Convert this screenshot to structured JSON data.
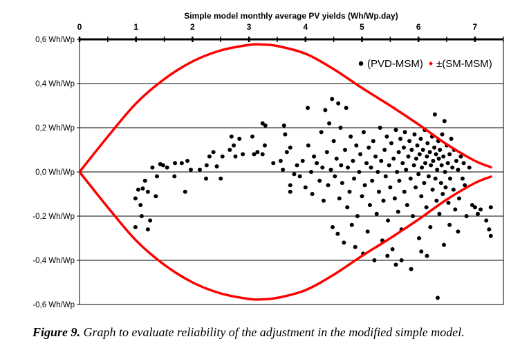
{
  "chart_data": {
    "type": "scatter",
    "title": "Simple model monthly average PV yields (Wh/Wp.day)",
    "xlabel": "Simple model monthly average PV yields (Wh/Wp.day)",
    "ylabel": "",
    "xlim": [
      0,
      7.5
    ],
    "ylim": [
      -0.6,
      0.6
    ],
    "x_ticks": [
      "0",
      "1",
      "2",
      "3",
      "4",
      "5",
      "6",
      "7"
    ],
    "x_tick_values": [
      0,
      1,
      2,
      3,
      4,
      5,
      6,
      7
    ],
    "y_ticks": [
      "0,6 Wh/Wp",
      "0,4 Wh/Wp",
      "0,2 Wh/Wp",
      "0,0 Wh/Wp",
      "-0,2 Wh/Wp",
      "-0,4 Wh/Wp",
      "-0,6 Wh/Wp"
    ],
    "y_tick_values": [
      0.6,
      0.4,
      0.2,
      0,
      -0.2,
      -0.4,
      -0.6
    ],
    "grid": "horizontal",
    "legend_position": "top-right",
    "legend": [
      "(PVD-MSM)",
      "±(SM-MSM)"
    ],
    "colors": {
      "points": "#000000",
      "envelope": "#ff0000"
    },
    "series": [
      {
        "name": "(PVD-MSM)",
        "kind": "points",
        "points": [
          [
            0.99,
            -0.12
          ],
          [
            0.99,
            -0.25
          ],
          [
            1.04,
            -0.08
          ],
          [
            1.08,
            -0.15
          ],
          [
            1.1,
            -0.2
          ],
          [
            1.12,
            -0.075
          ],
          [
            1.16,
            -0.04
          ],
          [
            1.21,
            -0.09
          ],
          [
            1.21,
            -0.26
          ],
          [
            1.25,
            -0.22
          ],
          [
            1.29,
            0.02
          ],
          [
            1.35,
            -0.11
          ],
          [
            1.37,
            -0.02
          ],
          [
            1.43,
            0.035
          ],
          [
            1.48,
            0.03
          ],
          [
            1.55,
            0.02
          ],
          [
            1.69,
            0.04
          ],
          [
            1.68,
            -0.02
          ],
          [
            1.81,
            0.04
          ],
          [
            1.87,
            -0.09
          ],
          [
            1.91,
            0.05
          ],
          [
            1.97,
            0.01
          ],
          [
            2.13,
            0.01
          ],
          [
            2.24,
            -0.03
          ],
          [
            2.25,
            0.03
          ],
          [
            2.3,
            0.07
          ],
          [
            2.37,
            0.09
          ],
          [
            2.43,
            0.025
          ],
          [
            2.5,
            -0.03
          ],
          [
            2.53,
            0.07
          ],
          [
            2.66,
            0.1
          ],
          [
            2.69,
            0.16
          ],
          [
            2.73,
            0.12
          ],
          [
            2.76,
            0.07
          ],
          [
            2.83,
            0.15
          ],
          [
            2.89,
            0.08
          ],
          [
            3.06,
            0.16
          ],
          [
            3.09,
            0.08
          ],
          [
            3.15,
            0.09
          ],
          [
            3.24,
            0.22
          ],
          [
            3.29,
            0.21
          ],
          [
            3.28,
            0.12
          ],
          [
            3.24,
            0.08
          ],
          [
            3.43,
            0.04
          ],
          [
            3.56,
            0.05
          ],
          [
            3.62,
            0.21
          ],
          [
            3.64,
            0.17
          ],
          [
            3.73,
            0.11
          ],
          [
            3.73,
            -0.06
          ],
          [
            3.73,
            -0.09
          ],
          [
            3.67,
            0.09
          ],
          [
            3.6,
            0.01
          ],
          [
            3.8,
            -0.01
          ],
          [
            3.85,
            0.03
          ],
          [
            3.9,
            -0.02
          ],
          [
            3.95,
            0.05
          ],
          [
            4.0,
            -0.07
          ],
          [
            4.04,
            0.29
          ],
          [
            4.05,
            0.12
          ],
          [
            4.1,
            0.0
          ],
          [
            4.12,
            -0.1
          ],
          [
            4.15,
            0.07
          ],
          [
            4.2,
            0.04
          ],
          [
            4.25,
            -0.04
          ],
          [
            4.28,
            0.18
          ],
          [
            4.3,
            0.02
          ],
          [
            4.32,
            -0.13
          ],
          [
            4.35,
            0.28
          ],
          [
            4.38,
            0.09
          ],
          [
            4.4,
            -0.06
          ],
          [
            4.42,
            0.22
          ],
          [
            4.45,
            0.01
          ],
          [
            4.47,
            0.33
          ],
          [
            4.48,
            -0.25
          ],
          [
            4.5,
            0.14
          ],
          [
            4.52,
            -0.02
          ],
          [
            4.55,
            0.06
          ],
          [
            4.57,
            -0.28
          ],
          [
            4.58,
            0.31
          ],
          [
            4.6,
            -0.12
          ],
          [
            4.62,
            0.2
          ],
          [
            4.63,
            0.03
          ],
          [
            4.65,
            -0.05
          ],
          [
            4.68,
            -0.32
          ],
          [
            4.7,
            0.1
          ],
          [
            4.72,
            0.29
          ],
          [
            4.74,
            -0.16
          ],
          [
            4.75,
            0.02
          ],
          [
            4.78,
            -0.09
          ],
          [
            4.8,
            0.16
          ],
          [
            4.82,
            -0.24
          ],
          [
            4.84,
            0.05
          ],
          [
            4.86,
            -0.03
          ],
          [
            4.88,
            -0.34
          ],
          [
            4.9,
            0.12
          ],
          [
            4.92,
            -0.2
          ],
          [
            4.95,
            0.0
          ],
          [
            4.97,
            0.08
          ],
          [
            5.0,
            -0.11
          ],
          [
            5.02,
            -0.37
          ],
          [
            5.03,
            0.18
          ],
          [
            5.05,
            -0.06
          ],
          [
            5.08,
            0.04
          ],
          [
            5.1,
            -0.27
          ],
          [
            5.12,
            0.11
          ],
          [
            5.14,
            -0.15
          ],
          [
            5.16,
            0.02
          ],
          [
            5.18,
            -0.04
          ],
          [
            5.2,
            0.14
          ],
          [
            5.22,
            -0.4
          ],
          [
            5.24,
            0.07
          ],
          [
            5.26,
            -0.19
          ],
          [
            5.28,
            0.0
          ],
          [
            5.3,
            -0.09
          ],
          [
            5.32,
            0.2
          ],
          [
            5.34,
            0.05
          ],
          [
            5.36,
            -0.31
          ],
          [
            5.38,
            -0.13
          ],
          [
            5.4,
            0.1
          ],
          [
            5.42,
            -0.02
          ],
          [
            5.44,
            0.16
          ],
          [
            5.46,
            -0.22
          ],
          [
            5.48,
            0.03
          ],
          [
            5.5,
            -0.07
          ],
          [
            5.52,
            0.13
          ],
          [
            5.54,
            -0.35
          ],
          [
            5.56,
            0.06
          ],
          [
            5.58,
            -0.12
          ],
          [
            5.6,
            0.19
          ],
          [
            5.62,
            0.0
          ],
          [
            5.64,
            -0.18
          ],
          [
            5.65,
            0.09
          ],
          [
            5.66,
            -0.04
          ],
          [
            5.68,
            0.15
          ],
          [
            5.7,
            -0.26
          ],
          [
            5.72,
            0.04
          ],
          [
            5.74,
            0.11
          ],
          [
            5.75,
            -0.09
          ],
          [
            5.76,
            0.18
          ],
          [
            5.78,
            0.01
          ],
          [
            5.8,
            -0.15
          ],
          [
            5.82,
            0.07
          ],
          [
            5.84,
            0.14
          ],
          [
            5.86,
            -0.03
          ],
          [
            5.87,
            -0.44
          ],
          [
            5.88,
            0.1
          ],
          [
            5.9,
            -0.2
          ],
          [
            5.92,
            0.03
          ],
          [
            5.93,
            0.17
          ],
          [
            5.95,
            -0.07
          ],
          [
            5.96,
            0.06
          ],
          [
            5.98,
            0.12
          ],
          [
            6.0,
            -0.01
          ],
          [
            6.01,
            -0.3
          ],
          [
            6.02,
            0.08
          ],
          [
            6.04,
            0.15
          ],
          [
            6.05,
            -0.11
          ],
          [
            6.06,
            0.02
          ],
          [
            6.08,
            0.1
          ],
          [
            6.1,
            -0.05
          ],
          [
            6.11,
            0.19
          ],
          [
            6.12,
            0.04
          ],
          [
            6.14,
            -0.16
          ],
          [
            6.15,
            0.07
          ],
          [
            6.16,
            0.13
          ],
          [
            6.18,
            -0.02
          ],
          [
            6.2,
            0.09
          ],
          [
            6.21,
            -0.25
          ],
          [
            6.22,
            0.03
          ],
          [
            6.24,
            0.16
          ],
          [
            6.25,
            -0.08
          ],
          [
            6.26,
            0.05
          ],
          [
            6.28,
            0.11
          ],
          [
            6.29,
            0.26
          ],
          [
            6.3,
            -0.03
          ],
          [
            6.31,
            0.08
          ],
          [
            6.32,
            -0.13
          ],
          [
            6.33,
            0.01
          ],
          [
            6.34,
            -0.57
          ],
          [
            6.35,
            0.14
          ],
          [
            6.36,
            0.06
          ],
          [
            6.37,
            -0.19
          ],
          [
            6.38,
            0.1
          ],
          [
            6.4,
            -0.05
          ],
          [
            6.41,
            0.03
          ],
          [
            6.42,
            0.17
          ],
          [
            6.43,
            -0.1
          ],
          [
            6.44,
            0.07
          ],
          [
            6.46,
            0.23
          ],
          [
            6.47,
            0.0
          ],
          [
            6.48,
            -0.07
          ],
          [
            6.5,
            0.12
          ],
          [
            6.52,
            0.04
          ],
          [
            6.53,
            -0.14
          ],
          [
            6.55,
            0.08
          ],
          [
            6.56,
            -0.03
          ],
          [
            6.58,
            0.15
          ],
          [
            6.6,
            0.02
          ],
          [
            6.62,
            -0.08
          ],
          [
            6.63,
            0.1
          ],
          [
            6.65,
            -0.17
          ],
          [
            6.67,
            0.05
          ],
          [
            6.7,
            0.01
          ],
          [
            6.72,
            -0.12
          ],
          [
            6.75,
            0.07
          ],
          [
            6.78,
            -0.03
          ],
          [
            6.8,
            0.04
          ],
          [
            6.82,
            -0.06
          ],
          [
            6.85,
            -0.2
          ],
          [
            6.9,
            0.02
          ],
          [
            6.95,
            -0.15
          ],
          [
            7.0,
            -0.16
          ],
          [
            7.05,
            -0.19
          ],
          [
            7.1,
            -0.17
          ],
          [
            7.2,
            -0.22
          ],
          [
            7.25,
            -0.26
          ],
          [
            7.28,
            -0.16
          ],
          [
            7.28,
            -0.29
          ],
          [
            6.45,
            -0.33
          ],
          [
            6.15,
            -0.38
          ],
          [
            5.7,
            -0.4
          ],
          [
            5.45,
            -0.38
          ],
          [
            5.6,
            -0.42
          ],
          [
            6.05,
            -0.36
          ],
          [
            6.55,
            -0.24
          ],
          [
            6.7,
            -0.27
          ]
        ]
      },
      {
        "name": "±(SM-MSM)",
        "kind": "envelope",
        "x": [
          0,
          0.5,
          1,
          1.5,
          2,
          2.5,
          3,
          3.2,
          3.5,
          4,
          4.5,
          5,
          5.5,
          6,
          6.5,
          7,
          7.3
        ],
        "y_upper": [
          0,
          0.16,
          0.31,
          0.42,
          0.5,
          0.55,
          0.575,
          0.577,
          0.57,
          0.535,
          0.465,
          0.38,
          0.3,
          0.215,
          0.125,
          0.05,
          0.02
        ],
        "y_lower": [
          0,
          -0.16,
          -0.31,
          -0.42,
          -0.5,
          -0.55,
          -0.575,
          -0.577,
          -0.57,
          -0.535,
          -0.465,
          -0.38,
          -0.3,
          -0.215,
          -0.125,
          -0.05,
          -0.02
        ]
      }
    ]
  },
  "caption": {
    "label": "Figure 9.",
    "text": " Graph to evaluate reliability of the adjustment in the modified simple model."
  }
}
